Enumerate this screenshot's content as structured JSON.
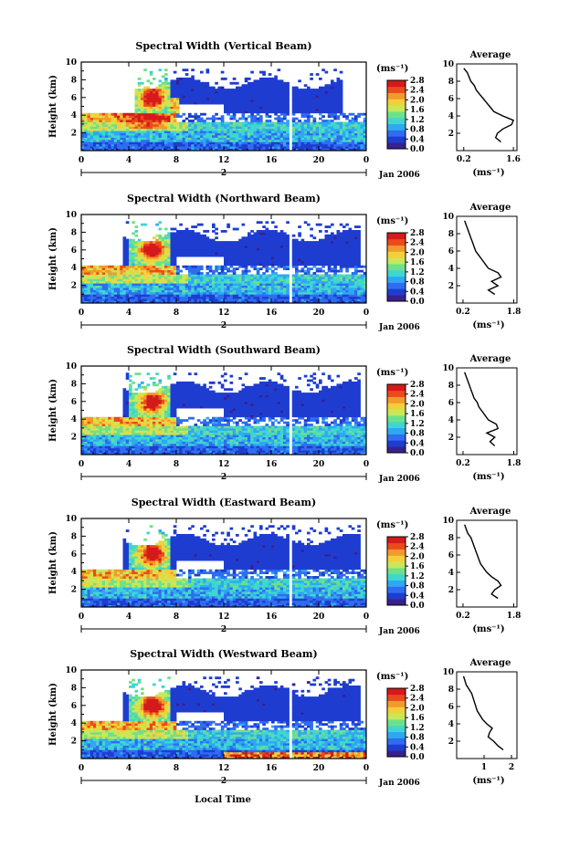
{
  "figure": {
    "xlabel_bottom": "Local Time",
    "date_label": "Jan 2006",
    "day_label": "2",
    "colorbar_unit": "(ms⁻¹)",
    "colorbar_ticks": [
      "0.0",
      "0.4",
      "0.8",
      "1.2",
      "1.6",
      "2.0",
      "2.4",
      "2.8"
    ],
    "colormap": [
      "#3a1f8f",
      "#1e3dd0",
      "#2f6cf0",
      "#2fa8f2",
      "#3fd6d0",
      "#6ee08a",
      "#c8e85a",
      "#f2d03a",
      "#f29a2a",
      "#ea4a1c",
      "#d41a1a"
    ],
    "x_ticks": [
      "0",
      "4",
      "8",
      "12",
      "16",
      "20",
      "0"
    ],
    "y_ticks": [
      "2",
      "4",
      "6",
      "8",
      "10"
    ],
    "average_title": "Average",
    "average_xlabel": "(ms⁻¹)"
  },
  "chart_data": [
    {
      "type": "heatmap",
      "title": "Spectral Width (Vertical Beam)",
      "ylabel": "Height (km)",
      "xlabel": "Local Time",
      "xlim": [
        0,
        24
      ],
      "ylim": [
        0,
        10
      ],
      "colorbar_range": [
        0.0,
        2.8
      ],
      "average_profile": {
        "xticks": [
          "0.2",
          "1.6"
        ],
        "xlim": [
          0.0,
          1.7
        ],
        "height": [
          1.0,
          1.5,
          2.0,
          2.5,
          3.0,
          3.5,
          4.0,
          4.5,
          5.0,
          5.5,
          6.0,
          6.5,
          7.0,
          7.5,
          8.0,
          8.5,
          9.0,
          9.5
        ],
        "width": [
          1.25,
          1.1,
          1.15,
          1.3,
          1.55,
          1.6,
          1.3,
          1.05,
          0.95,
          0.85,
          0.75,
          0.65,
          0.55,
          0.5,
          0.4,
          0.35,
          0.3,
          0.2
        ]
      }
    },
    {
      "type": "heatmap",
      "title": "Spectral Width (Northward Beam)",
      "ylabel": "Height (km)",
      "xlabel": "Local Time",
      "xlim": [
        0,
        24
      ],
      "ylim": [
        0,
        10
      ],
      "colorbar_range": [
        0.0,
        2.8
      ],
      "average_profile": {
        "xticks": [
          "0.2",
          "1.8"
        ],
        "xlim": [
          0.0,
          1.9
        ],
        "height": [
          1.0,
          1.5,
          2.0,
          2.5,
          3.0,
          3.5,
          4.0,
          4.5,
          5.0,
          5.5,
          6.0,
          6.5,
          7.0,
          7.5,
          8.0,
          8.5,
          9.0,
          9.5
        ],
        "width": [
          1.2,
          1.0,
          1.3,
          1.1,
          1.4,
          1.3,
          1.0,
          0.9,
          0.8,
          0.7,
          0.6,
          0.55,
          0.5,
          0.45,
          0.4,
          0.35,
          0.3,
          0.25
        ]
      }
    },
    {
      "type": "heatmap",
      "title": "Spectral Width (Southward Beam)",
      "ylabel": "Height (km)",
      "xlabel": "Local Time",
      "xlim": [
        0,
        24
      ],
      "ylim": [
        0,
        10
      ],
      "colorbar_range": [
        0.0,
        2.8
      ],
      "average_profile": {
        "xticks": [
          "0.2",
          "1.8"
        ],
        "xlim": [
          0.0,
          1.9
        ],
        "height": [
          1.0,
          1.5,
          2.0,
          2.5,
          3.0,
          3.5,
          4.0,
          4.5,
          5.0,
          5.5,
          6.0,
          6.5,
          7.0,
          7.5,
          8.0,
          8.5,
          9.0,
          9.5
        ],
        "width": [
          1.2,
          1.05,
          1.2,
          0.95,
          1.3,
          1.25,
          1.0,
          0.9,
          0.8,
          0.7,
          0.65,
          0.55,
          0.5,
          0.45,
          0.4,
          0.35,
          0.3,
          0.25
        ]
      }
    },
    {
      "type": "heatmap",
      "title": "Spectral Width (Eastward Beam)",
      "ylabel": "Height (km)",
      "xlabel": "Local Time",
      "xlim": [
        0,
        24
      ],
      "ylim": [
        0,
        10
      ],
      "colorbar_range": [
        0.0,
        2.8
      ],
      "average_profile": {
        "xticks": [
          "0.2",
          "1.8"
        ],
        "xlim": [
          0.0,
          1.9
        ],
        "height": [
          1.0,
          1.5,
          2.0,
          2.5,
          3.0,
          3.5,
          4.0,
          4.5,
          5.0,
          5.5,
          6.0,
          6.5,
          7.0,
          7.5,
          8.0,
          8.5,
          9.0,
          9.5
        ],
        "width": [
          1.3,
          1.1,
          1.2,
          1.4,
          1.3,
          1.1,
          0.95,
          0.85,
          0.75,
          0.7,
          0.65,
          0.6,
          0.55,
          0.5,
          0.45,
          0.35,
          0.3,
          0.25
        ]
      }
    },
    {
      "type": "heatmap",
      "title": "Spectral Width (Westward Beam)",
      "ylabel": "Height (km)",
      "xlabel": "Local Time",
      "xlim": [
        0,
        24
      ],
      "ylim": [
        0,
        10
      ],
      "colorbar_range": [
        0.0,
        2.8
      ],
      "average_profile": {
        "xticks": [
          "1",
          "2"
        ],
        "xlim": [
          0.0,
          2.2
        ],
        "height": [
          1.0,
          1.5,
          2.0,
          2.5,
          3.0,
          3.5,
          4.0,
          4.5,
          5.0,
          5.5,
          6.0,
          6.5,
          7.0,
          7.5,
          8.0,
          8.5,
          9.0,
          9.5
        ],
        "width": [
          1.7,
          1.5,
          1.35,
          1.15,
          1.2,
          1.3,
          1.1,
          0.95,
          0.85,
          0.75,
          0.7,
          0.65,
          0.6,
          0.55,
          0.45,
          0.35,
          0.3,
          0.25
        ]
      }
    }
  ]
}
